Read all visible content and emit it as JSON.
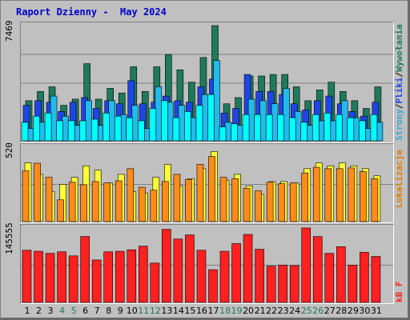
{
  "title": "Raport Dzienny -  May 2024",
  "colors": {
    "visits": "#1e7a5a",
    "sites": "#1e46e6",
    "pages": "#00ffff",
    "hits": "#22bbee",
    "files_top": "#ffff33",
    "files": "#ff8c1a",
    "kb": "#ff2020",
    "weekend": "#1e7a5a",
    "weekday": "#000000"
  },
  "right_labels": {
    "top_sep": "/",
    "visits": "Wywołania",
    "files": "Pliki",
    "pages": "Strony",
    "sites": "Lokalizacje",
    "kb": "kB F"
  },
  "chart_data": [
    {
      "type": "bar",
      "title": "Raport Dzienny -  May 2024",
      "ymax_label": "7469",
      "ylim": [
        0,
        7469
      ],
      "gridlines": [
        0.5,
        0.75
      ],
      "categories": [
        "1",
        "2",
        "3",
        "4",
        "5",
        "6",
        "7",
        "8",
        "9",
        "10",
        "11",
        "12",
        "13",
        "14",
        "15",
        "16",
        "17",
        "18",
        "19",
        "20",
        "21",
        "22",
        "23",
        "24",
        "25",
        "26",
        "27",
        "28",
        "29",
        "30",
        "31"
      ],
      "weekend_days": [
        4,
        5,
        11,
        12,
        18,
        19,
        25,
        26
      ],
      "series": [
        {
          "values": [
            2600,
            3200,
            3500,
            2300,
            2700,
            5000,
            2700,
            3400,
            3100,
            4800,
            3200,
            4800,
            5600,
            4600,
            3800,
            5400,
            7469,
            2400,
            2800,
            4200,
            4200,
            4300,
            4300,
            3500,
            2600,
            3300,
            3800,
            3200,
            2600,
            2100,
            3500
          ]
        },
        {
          "values": [
            2300,
            2600,
            2500,
            1900,
            2500,
            2800,
            2100,
            2600,
            2400,
            3900,
            2400,
            2500,
            2900,
            2600,
            2500,
            3500,
            4000,
            1800,
            2100,
            4300,
            3200,
            3200,
            3000,
            2400,
            2000,
            2600,
            2900,
            2400,
            1900,
            1600,
            2500
          ]
        },
        {
          "values": [
            1200,
            1600,
            1800,
            1300,
            1300,
            1300,
            1400,
            1800,
            1600,
            1500,
            1300,
            2100,
            2600,
            1500,
            1900,
            2300,
            3000,
            900,
            1100,
            1700,
            1700,
            1700,
            1700,
            1500,
            1200,
            1700,
            1800,
            1700,
            1500,
            1300,
            1700
          ]
        },
        {
          "values": [
            800,
            1200,
            2900,
            1600,
            1000,
            2600,
            1000,
            2600,
            1700,
            2300,
            800,
            3500,
            2500,
            2300,
            1500,
            3000,
            5200,
            1200,
            1000,
            2700,
            2600,
            2400,
            3400,
            1900,
            1000,
            1300,
            1300,
            2600,
            1500,
            800,
            1200
          ]
        }
      ]
    },
    {
      "type": "bar",
      "ymax_label": "520",
      "ylim": [
        0,
        520
      ],
      "series": [
        {
          "values": [
            410,
            330,
            210,
            260,
            310,
            390,
            360,
            270,
            330,
            210,
            200,
            310,
            400,
            250,
            300,
            370,
            490,
            290,
            330,
            250,
            190,
            280,
            280,
            270,
            370,
            410,
            390,
            410,
            390,
            370,
            320
          ]
        },
        {
          "values": [
            355,
            408,
            310,
            152,
            275,
            258,
            280,
            270,
            285,
            370,
            240,
            220,
            280,
            330,
            295,
            400,
            455,
            310,
            300,
            232,
            215,
            275,
            265,
            270,
            340,
            380,
            370,
            370,
            375,
            350,
            300
          ]
        }
      ]
    },
    {
      "type": "bar",
      "ymax_label": "145555",
      "ylim": [
        0,
        145555
      ],
      "series": [
        {
          "values": [
            102000,
            100000,
            96000,
            99000,
            91000,
            129000,
            83000,
            99000,
            100000,
            103000,
            110000,
            77000,
            143000,
            124000,
            132000,
            102000,
            64000,
            100000,
            115000,
            133000,
            104000,
            71000,
            73000,
            72000,
            145555,
            129000,
            96000,
            109000,
            73000,
            98000,
            90000
          ]
        }
      ]
    }
  ]
}
